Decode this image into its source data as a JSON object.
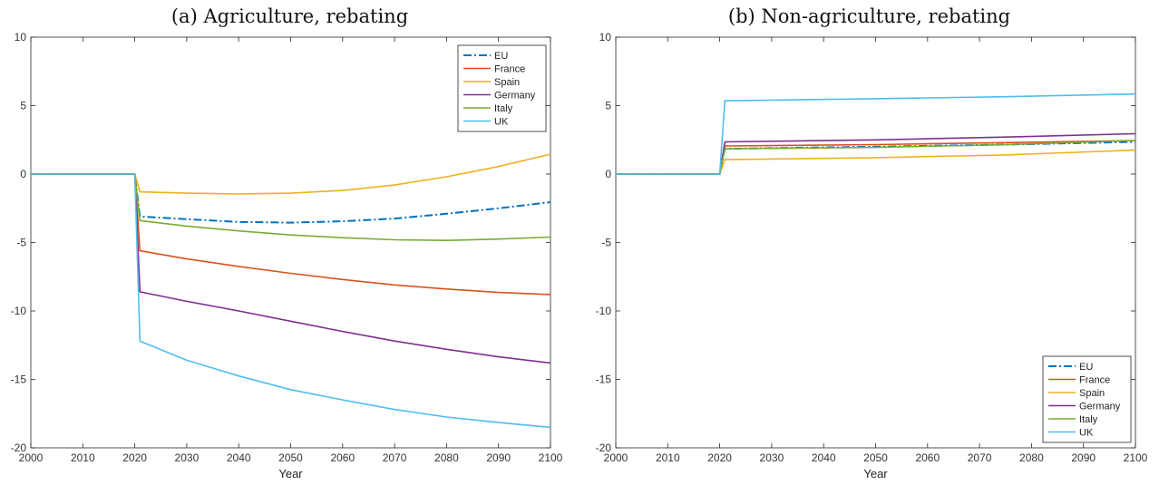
{
  "chart_data": [
    {
      "type": "line",
      "title": "(a) Agriculture, rebating",
      "xlabel": "Year",
      "ylabel": "",
      "xlim": [
        2000,
        2100
      ],
      "ylim": [
        -20,
        10
      ],
      "xticks": [
        2000,
        2010,
        2020,
        2030,
        2040,
        2050,
        2060,
        2070,
        2080,
        2090,
        2100
      ],
      "xtick_labels": [
        "2000",
        "2010",
        "2020",
        "2030",
        "2040",
        "2050",
        "2060",
        "2070",
        "2080",
        "2090",
        "2100"
      ],
      "yticks": [
        10,
        5,
        0,
        -5,
        -10,
        -15,
        -20
      ],
      "ytick_labels": [
        "10",
        "5",
        "0",
        "-5",
        "-10",
        "-15",
        "-20"
      ],
      "grid": false,
      "legend_position": "top-right",
      "series": [
        {
          "name": "EU",
          "color": "#0072BD",
          "dash": "dashdot",
          "x": [
            2000,
            2020,
            2021,
            2030,
            2040,
            2050,
            2060,
            2070,
            2080,
            2090,
            2100
          ],
          "y": [
            0,
            0,
            -3.1,
            -3.3,
            -3.5,
            -3.55,
            -3.45,
            -3.25,
            -2.9,
            -2.5,
            -2.05
          ]
        },
        {
          "name": "France",
          "color": "#D95319",
          "dash": "solid",
          "x": [
            2000,
            2020,
            2021,
            2030,
            2040,
            2050,
            2060,
            2070,
            2080,
            2090,
            2100
          ],
          "y": [
            0,
            0,
            -5.6,
            -6.2,
            -6.75,
            -7.25,
            -7.7,
            -8.1,
            -8.4,
            -8.65,
            -8.8
          ]
        },
        {
          "name": "Spain",
          "color": "#EDB120",
          "dash": "solid",
          "x": [
            2000,
            2020,
            2021,
            2030,
            2040,
            2050,
            2060,
            2070,
            2080,
            2090,
            2100
          ],
          "y": [
            0,
            0,
            -1.3,
            -1.4,
            -1.45,
            -1.4,
            -1.2,
            -0.8,
            -0.2,
            0.55,
            1.45
          ]
        },
        {
          "name": "Germany",
          "color": "#7E2F8E",
          "dash": "solid",
          "x": [
            2000,
            2020,
            2021,
            2030,
            2040,
            2050,
            2060,
            2070,
            2080,
            2090,
            2100
          ],
          "y": [
            0,
            0,
            -8.6,
            -9.3,
            -10.0,
            -10.75,
            -11.5,
            -12.2,
            -12.8,
            -13.35,
            -13.8
          ]
        },
        {
          "name": "Italy",
          "color": "#77AC30",
          "dash": "solid",
          "x": [
            2000,
            2020,
            2021,
            2030,
            2040,
            2050,
            2060,
            2070,
            2080,
            2090,
            2100
          ],
          "y": [
            0,
            0,
            -3.4,
            -3.8,
            -4.15,
            -4.45,
            -4.65,
            -4.8,
            -4.85,
            -4.75,
            -4.6
          ]
        },
        {
          "name": "UK",
          "color": "#4DBEEE",
          "dash": "solid",
          "x": [
            2000,
            2020,
            2021,
            2030,
            2040,
            2050,
            2060,
            2070,
            2080,
            2090,
            2100
          ],
          "y": [
            0,
            0,
            -12.2,
            -13.6,
            -14.75,
            -15.75,
            -16.5,
            -17.2,
            -17.75,
            -18.15,
            -18.5
          ]
        }
      ]
    },
    {
      "type": "line",
      "title": "(b) Non-agriculture, rebating",
      "xlabel": "Year",
      "ylabel": "",
      "xlim": [
        2000,
        2100
      ],
      "ylim": [
        -20,
        10
      ],
      "xticks": [
        2000,
        2010,
        2020,
        2030,
        2040,
        2050,
        2060,
        2070,
        2080,
        2090,
        2100
      ],
      "xtick_labels": [
        "2000",
        "2010",
        "2020",
        "2030",
        "2040",
        "2050",
        "2060",
        "2070",
        "2080",
        "2090",
        "2100"
      ],
      "yticks": [
        10,
        5,
        0,
        -5,
        -10,
        -15,
        -20
      ],
      "ytick_labels": [
        "10",
        "5",
        "0",
        "-5",
        "-10",
        "-15",
        "-20"
      ],
      "grid": false,
      "legend_position": "bottom-right",
      "series": [
        {
          "name": "EU",
          "color": "#0072BD",
          "dash": "dashdot",
          "x": [
            2000,
            2020,
            2021,
            2050,
            2075,
            2100
          ],
          "y": [
            0,
            0,
            1.85,
            2.0,
            2.15,
            2.35
          ]
        },
        {
          "name": "France",
          "color": "#D95319",
          "dash": "solid",
          "x": [
            2000,
            2020,
            2021,
            2050,
            2075,
            2100
          ],
          "y": [
            0,
            0,
            2.05,
            2.15,
            2.3,
            2.45
          ]
        },
        {
          "name": "Spain",
          "color": "#EDB120",
          "dash": "solid",
          "x": [
            2000,
            2020,
            2021,
            2050,
            2075,
            2100
          ],
          "y": [
            0,
            0,
            1.05,
            1.2,
            1.4,
            1.75
          ]
        },
        {
          "name": "Germany",
          "color": "#7E2F8E",
          "dash": "solid",
          "x": [
            2000,
            2020,
            2021,
            2050,
            2075,
            2100
          ],
          "y": [
            0,
            0,
            2.35,
            2.5,
            2.7,
            2.95
          ]
        },
        {
          "name": "Italy",
          "color": "#77AC30",
          "dash": "solid",
          "x": [
            2000,
            2020,
            2021,
            2050,
            2075,
            2100
          ],
          "y": [
            0,
            0,
            1.85,
            1.95,
            2.15,
            2.45
          ]
        },
        {
          "name": "UK",
          "color": "#4DBEEE",
          "dash": "solid",
          "x": [
            2000,
            2020,
            2021,
            2050,
            2075,
            2100
          ],
          "y": [
            0,
            0,
            5.35,
            5.5,
            5.65,
            5.85
          ]
        }
      ]
    }
  ]
}
